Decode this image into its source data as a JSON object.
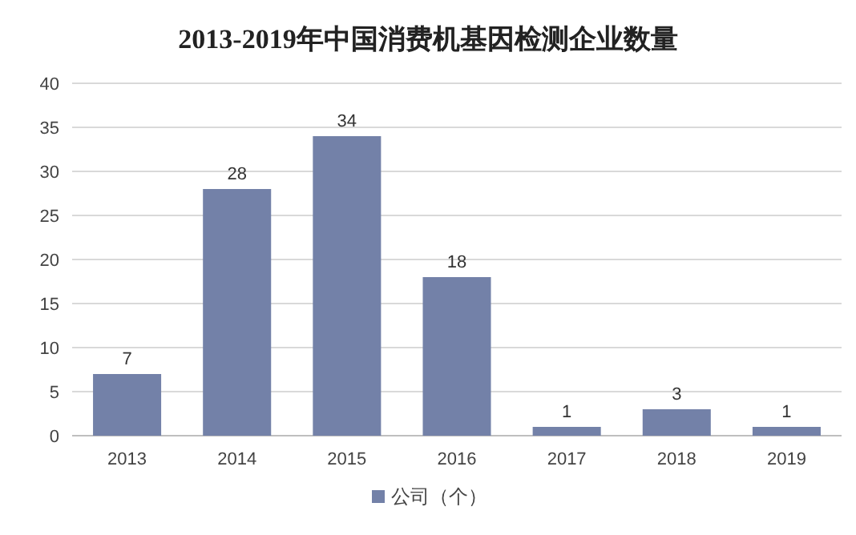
{
  "chart_data": {
    "type": "bar",
    "title": "2013-2019年中国消费机基因检测企业数量",
    "categories": [
      "2013",
      "2014",
      "2015",
      "2016",
      "2017",
      "2018",
      "2019"
    ],
    "series": [
      {
        "name": "公司（个）",
        "color": "#7381a8",
        "values": [
          7,
          28,
          34,
          18,
          1,
          3,
          1
        ]
      }
    ],
    "ylim": [
      0,
      40
    ],
    "yticks": [
      0,
      5,
      10,
      15,
      20,
      25,
      30,
      35,
      40
    ],
    "grid": "y",
    "legend": "bottom",
    "data_labels": true
  }
}
